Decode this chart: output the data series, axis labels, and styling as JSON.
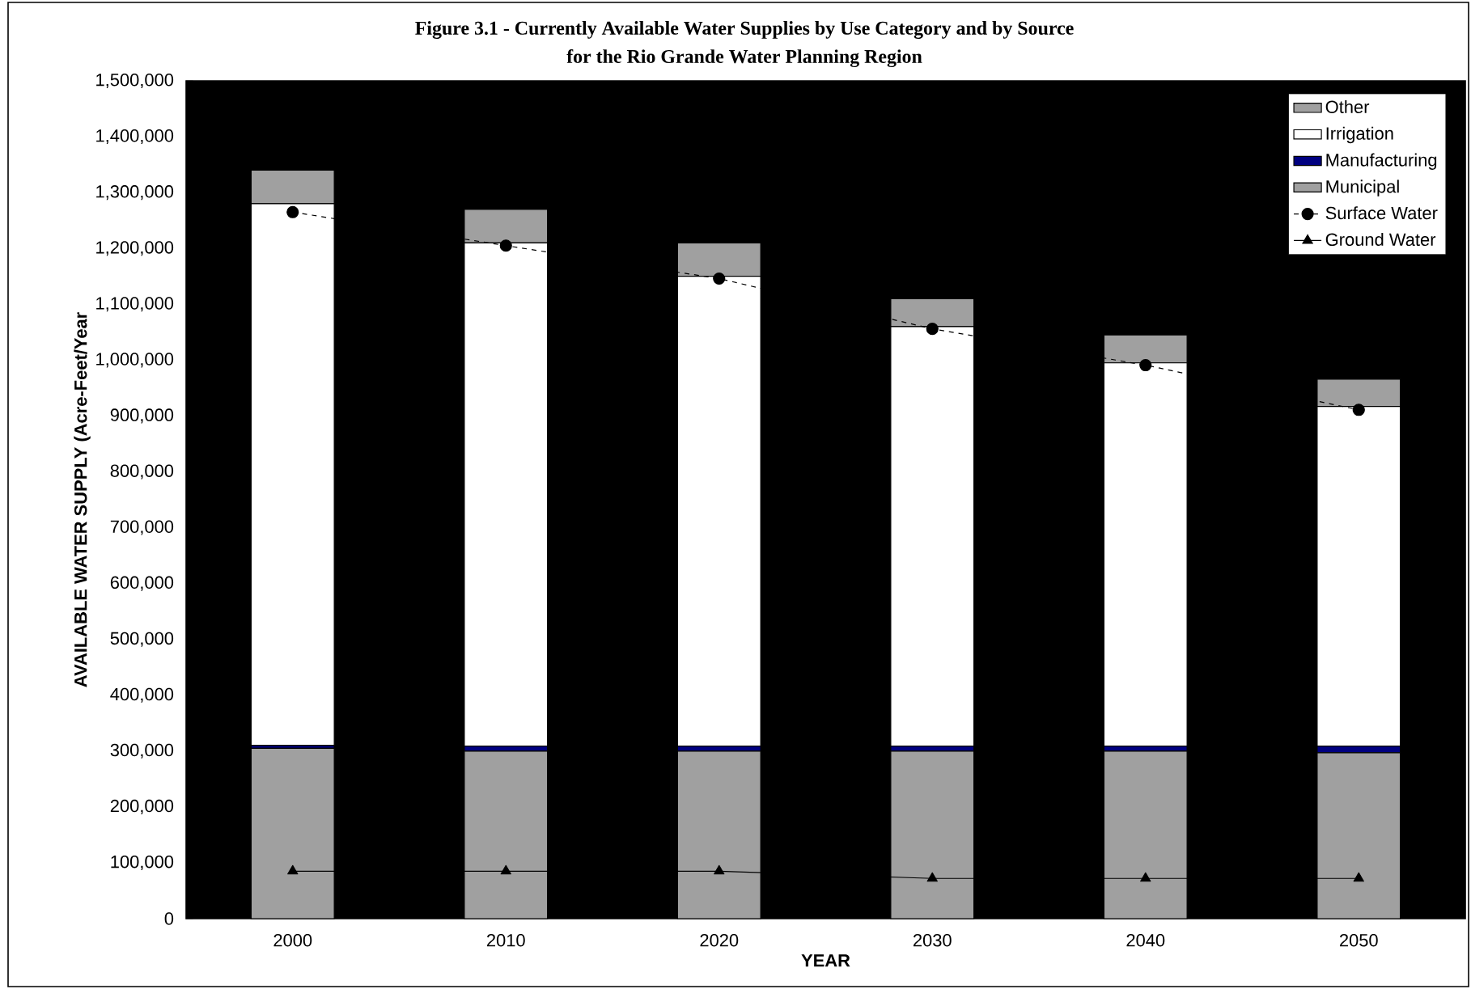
{
  "chart_data": {
    "type": "bar",
    "stacked": true,
    "title": "Figure 3.1 - Currently Available Water Supplies by Use Category and by Source",
    "subtitle": "for the Rio Grande Water Planning Region",
    "xlabel": "YEAR",
    "ylabel": "AVAILABLE WATER  SUPPLY  (Acre-Feet/Year",
    "categories": [
      "2000",
      "2010",
      "2020",
      "2030",
      "2040",
      "2050"
    ],
    "series": [
      {
        "name": "Municipal",
        "color": "#a0a0a0",
        "values": [
          305000,
          300000,
          300000,
          300000,
          300000,
          297000
        ]
      },
      {
        "name": "Manufacturing",
        "color": "#000080",
        "values": [
          5000,
          9000,
          9000,
          9000,
          9000,
          12000
        ]
      },
      {
        "name": "Irrigation",
        "color": "#ffffff",
        "values": [
          970000,
          901000,
          841000,
          751000,
          686000,
          608000
        ]
      },
      {
        "name": "Other",
        "color": "#a0a0a0",
        "values": [
          60000,
          60000,
          60000,
          50000,
          50000,
          49000
        ]
      },
      {
        "name": "Surface Water",
        "type": "line",
        "color": "#000000",
        "marker": "circle",
        "line_style": "dashed",
        "values": [
          1265000,
          1205000,
          1146000,
          1056000,
          991000,
          911000
        ]
      },
      {
        "name": "Ground Water",
        "type": "line",
        "color": "#000000",
        "marker": "triangle",
        "line_style": "solid",
        "values": [
          85000,
          85000,
          85000,
          72000,
          72000,
          72000
        ]
      }
    ],
    "ylim": [
      0,
      1500000
    ],
    "yticks": [
      {
        "value": 0,
        "label": "0"
      },
      {
        "value": 100000,
        "label": "100,000"
      },
      {
        "value": 200000,
        "label": "200,000"
      },
      {
        "value": 300000,
        "label": "300,000"
      },
      {
        "value": 400000,
        "label": "400,000"
      },
      {
        "value": 500000,
        "label": "500,000"
      },
      {
        "value": 600000,
        "label": "600,000"
      },
      {
        "value": 700000,
        "label": "700,000"
      },
      {
        "value": 800000,
        "label": "800,000"
      },
      {
        "value": 900000,
        "label": "900,000"
      },
      {
        "value": 1000000,
        "label": "1,000,000"
      },
      {
        "value": 1100000,
        "label": "1,100,000"
      },
      {
        "value": 1200000,
        "label": "1,200,000"
      },
      {
        "value": 1300000,
        "label": "1,300,000"
      },
      {
        "value": 1400000,
        "label": "1,400,000"
      },
      {
        "value": 1500000,
        "label": "1,500,000"
      }
    ],
    "legend": "top right"
  }
}
